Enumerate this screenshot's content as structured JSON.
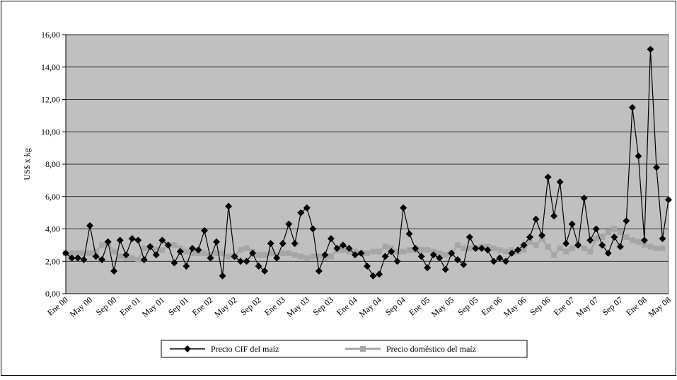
{
  "chart_data": {
    "type": "line",
    "ylabel": "US$ x kg",
    "categories": [
      "Ene 00",
      null,
      null,
      null,
      "May 00",
      null,
      null,
      null,
      "Sep 00",
      null,
      null,
      null,
      "Ene 01",
      null,
      null,
      null,
      "May 01",
      null,
      null,
      null,
      "Sep 01",
      null,
      null,
      null,
      "Ene 02",
      null,
      null,
      null,
      "May 02",
      null,
      null,
      null,
      "Sep 02",
      null,
      null,
      null,
      "Ene 03",
      null,
      null,
      null,
      "May 03",
      null,
      null,
      null,
      "Sep 03",
      null,
      null,
      null,
      "Ene 04",
      null,
      null,
      null,
      "May 04",
      null,
      null,
      null,
      "Sep 04",
      null,
      null,
      null,
      "Ene 05",
      null,
      null,
      null,
      "May 05",
      null,
      null,
      null,
      "Sep 05",
      null,
      null,
      null,
      "Ene 06",
      null,
      null,
      null,
      "May 06",
      null,
      null,
      null,
      "Sep 06",
      null,
      null,
      null,
      "Ene 07",
      null,
      null,
      null,
      "May 07",
      null,
      null,
      null,
      "Sep 07",
      null,
      null,
      null,
      "Ene 08",
      null,
      null,
      null,
      "May 08"
    ],
    "series": [
      {
        "name": "Precio CIF del maíz",
        "color": "#000000",
        "marker": "diamond",
        "values": [
          2.5,
          2.2,
          2.2,
          2.1,
          4.2,
          2.3,
          2.1,
          3.2,
          1.4,
          3.3,
          2.4,
          3.4,
          3.3,
          2.1,
          2.9,
          2.4,
          3.3,
          3.0,
          1.9,
          2.6,
          1.7,
          2.8,
          2.7,
          3.9,
          2.2,
          3.2,
          1.1,
          5.4,
          2.3,
          2.0,
          2.0,
          2.5,
          1.7,
          1.4,
          3.1,
          2.2,
          3.1,
          4.3,
          3.1,
          5.0,
          5.3,
          4.0,
          1.4,
          2.4,
          3.4,
          2.8,
          3.0,
          2.8,
          2.4,
          2.5,
          1.7,
          1.1,
          1.2,
          2.3,
          2.6,
          2.0,
          5.3,
          3.7,
          2.8,
          2.3,
          1.6,
          2.4,
          2.2,
          1.5,
          2.5,
          2.1,
          1.8,
          3.5,
          2.8,
          2.8,
          2.7,
          2.0,
          2.2,
          2.0,
          2.5,
          2.7,
          3.0,
          3.5,
          4.6,
          3.6,
          7.2,
          4.8,
          6.9,
          3.1,
          4.3,
          3.0,
          5.9,
          3.3,
          4.0,
          3.0,
          2.5,
          3.5,
          2.9,
          4.5,
          11.5,
          8.5,
          3.3,
          15.1,
          7.8,
          3.4,
          5.8
        ]
      },
      {
        "name": "Precio doméstico del maíz",
        "color": "#a6a6a6",
        "marker": "square",
        "values": [
          2.5,
          2.5,
          2.5,
          2.5,
          2.5,
          2.6,
          3.0,
          3.1,
          2.6,
          2.3,
          2.2,
          2.2,
          2.1,
          2.8,
          2.9,
          2.7,
          2.7,
          3.0,
          3.0,
          2.8,
          2.6,
          2.5,
          2.5,
          2.5,
          2.4,
          2.5,
          2.5,
          2.3,
          2.3,
          2.7,
          2.8,
          2.6,
          2.4,
          2.4,
          2.5,
          2.4,
          2.5,
          2.5,
          2.4,
          2.3,
          2.2,
          2.3,
          2.3,
          2.2,
          2.3,
          2.7,
          2.7,
          2.6,
          2.6,
          2.5,
          2.5,
          2.6,
          2.6,
          2.9,
          2.8,
          2.6,
          2.6,
          2.7,
          2.7,
          2.7,
          2.7,
          2.6,
          2.5,
          2.4,
          2.5,
          3.0,
          2.8,
          2.8,
          2.8,
          2.9,
          2.9,
          2.8,
          2.7,
          2.6,
          2.7,
          2.6,
          2.7,
          3.2,
          3.0,
          3.4,
          2.9,
          2.4,
          2.8,
          2.6,
          2.8,
          3.0,
          2.8,
          2.6,
          3.4,
          3.5,
          3.8,
          4.0,
          3.8,
          3.5,
          3.3,
          3.2,
          3.0,
          2.9,
          2.8,
          2.8,
          null
        ]
      }
    ],
    "ylim": [
      0,
      16
    ],
    "yticks": [
      {
        "value": 0,
        "label": "0,00"
      },
      {
        "value": 2,
        "label": "2,00"
      },
      {
        "value": 4,
        "label": "4,00"
      },
      {
        "value": 6,
        "label": "6,00"
      },
      {
        "value": 8,
        "label": "8,00"
      },
      {
        "value": 10,
        "label": "10,00"
      },
      {
        "value": 12,
        "label": "12,00"
      },
      {
        "value": 14,
        "label": "14,00"
      },
      {
        "value": 16,
        "label": "16,00"
      }
    ],
    "grid": true
  }
}
